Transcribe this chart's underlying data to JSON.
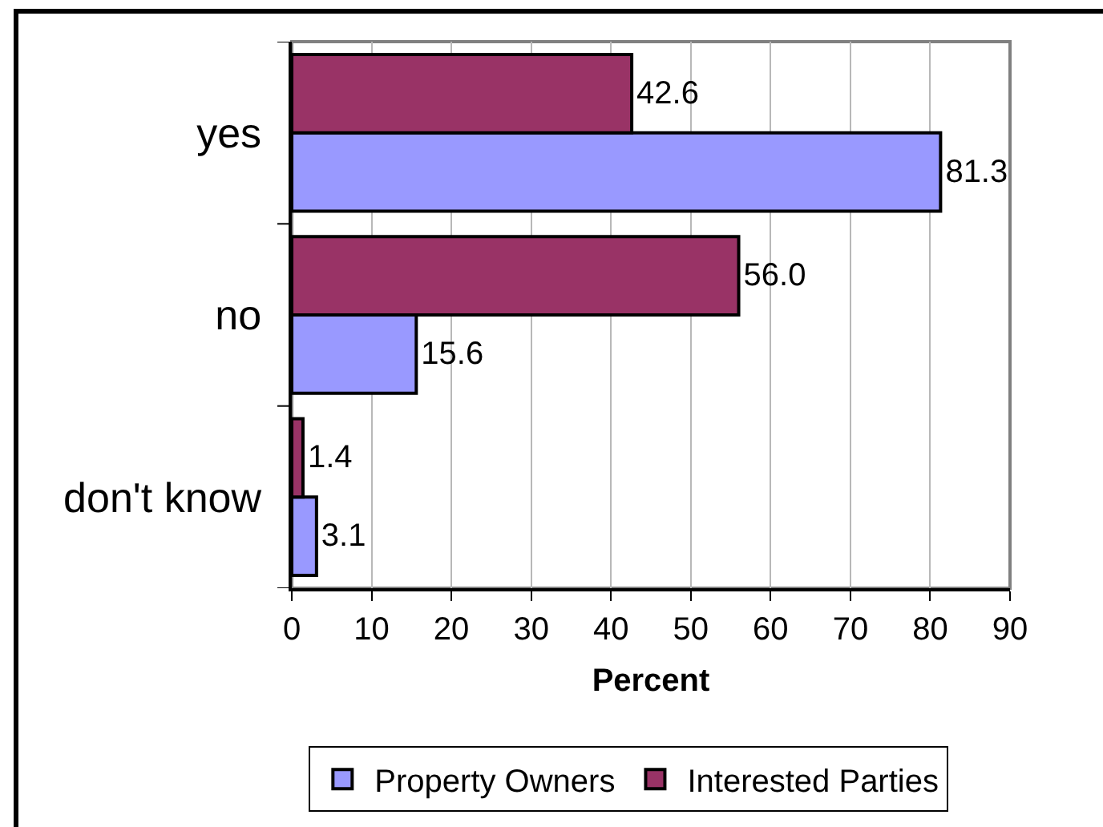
{
  "chart_data": {
    "type": "bar",
    "orientation": "horizontal",
    "categories": [
      "yes",
      "no",
      "don't know"
    ],
    "series": [
      {
        "name": "Property Owners",
        "color": "#9999ff",
        "values": [
          81.3,
          15.6,
          3.1
        ],
        "value_labels": [
          "81.3",
          "15.6",
          "3.1"
        ]
      },
      {
        "name": "Interested Parties",
        "color": "#993366",
        "values": [
          42.6,
          56.0,
          1.4
        ],
        "value_labels": [
          "42.6",
          "56.0",
          "1.4"
        ]
      }
    ],
    "xlabel": "Percent",
    "xlim": [
      0,
      90
    ],
    "xticks": [
      0,
      10,
      20,
      30,
      40,
      50,
      60,
      70,
      80,
      90
    ],
    "grid": "x",
    "legend": "bottom"
  }
}
